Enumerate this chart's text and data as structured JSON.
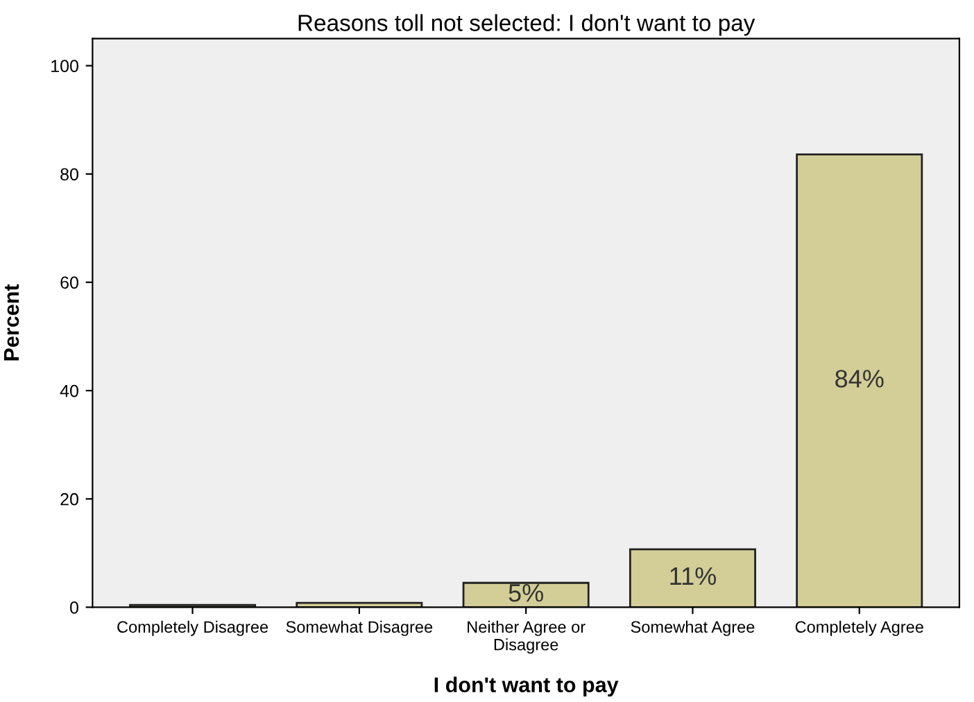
{
  "chart_data": {
    "type": "bar",
    "title": "Reasons toll not selected: I don't want to pay",
    "xlabel": "I don't want to pay",
    "ylabel": "Percent",
    "categories": [
      "Completely Disagree",
      "Somewhat Disagree",
      "Neither Agree or\nDisagree",
      "Somewhat Agree",
      "Completely Agree"
    ],
    "values": [
      0.4,
      0.8,
      4.5,
      10.7,
      83.6
    ],
    "value_labels": [
      null,
      null,
      "5%",
      "11%",
      "84%"
    ],
    "color": "#d3ce97",
    "ylim": [
      0,
      105
    ],
    "yticks": [
      0,
      20,
      40,
      60,
      80,
      100
    ],
    "grid": false
  }
}
